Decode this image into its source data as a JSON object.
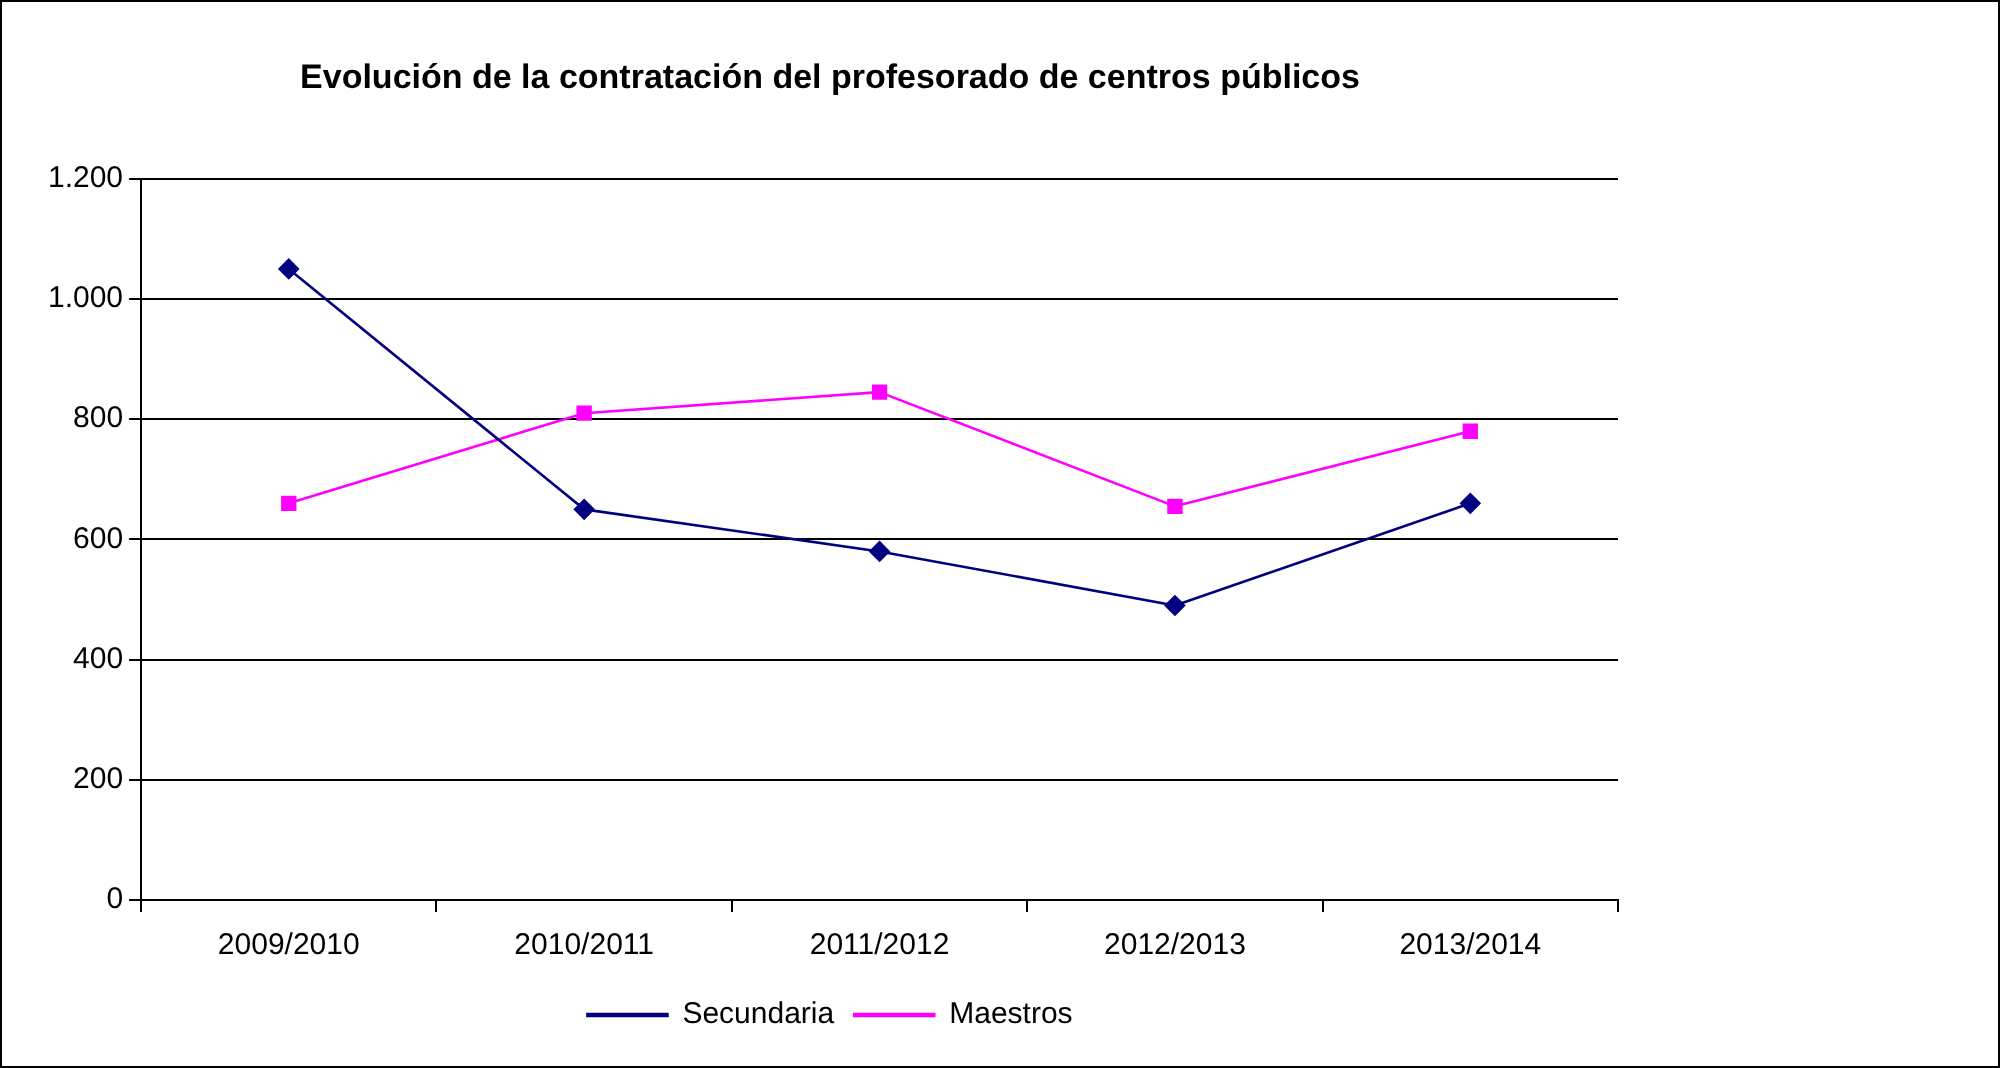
{
  "chart_data": {
    "type": "line",
    "title": "Evolución de la contratación del profesorado de centros públicos",
    "categories": [
      "2009/2010",
      "2010/2011",
      "2011/2012",
      "2012/2013",
      "2013/2014"
    ],
    "series": [
      {
        "name": "Secundaria",
        "color": "#000080",
        "marker": "diamond",
        "values": [
          1050,
          650,
          580,
          490,
          660
        ]
      },
      {
        "name": "Maestros",
        "color": "#ff00ff",
        "marker": "square",
        "values": [
          660,
          810,
          845,
          655,
          780
        ]
      }
    ],
    "ylim": [
      0,
      1200
    ],
    "yticks": [
      0,
      200,
      400,
      600,
      800,
      {
        "value": 1000,
        "label": "1.000"
      },
      {
        "value": 1200,
        "label": "1.200"
      }
    ],
    "grid": "y",
    "legend": "bottom",
    "line_style": "solid"
  }
}
